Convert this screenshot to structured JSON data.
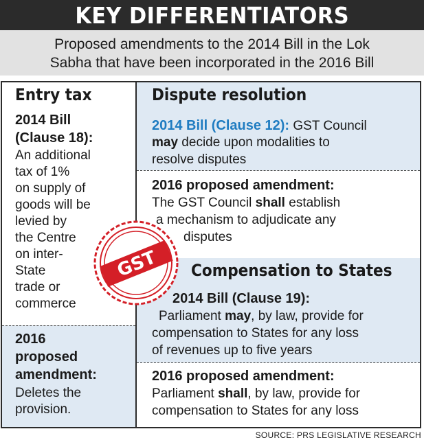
{
  "header": {
    "title": "KEY DIFFERENTIATORS"
  },
  "subtitle": {
    "line1": "Proposed amendments to the 2014 Bill in the Lok",
    "line2": "Sabha that have been incorporated in the 2016 Bill"
  },
  "entry_tax": {
    "heading": "Entry tax",
    "bill_line1": "2014 Bill",
    "bill_line2": "(Clause 18):",
    "body_lines": [
      "An additional",
      "tax of 1%",
      "on supply of",
      "goods will be",
      "levied by",
      "the Centre",
      "on inter-",
      "State",
      "trade or",
      "commerce"
    ],
    "amend_lines": [
      "2016",
      "proposed",
      "amendment:"
    ],
    "amend_body_lines": [
      "Deletes the",
      "provision."
    ]
  },
  "dispute": {
    "heading": "Dispute resolution",
    "bill_label": "2014 Bill (Clause 12):",
    "bill_text1": " GST Council",
    "bill_bold": "may",
    "bill_text2": " decide upon modalities to",
    "bill_text3": "resolve disputes",
    "amend_label": "2016 proposed amendment:",
    "amend_text1": "The GST Council ",
    "amend_bold": "shall",
    "amend_text2": " establish",
    "amend_text3": "a mechanism to adjudicate any",
    "amend_text4": "disputes"
  },
  "compensation": {
    "heading": "Compensation to States",
    "bill_label": "2014 Bill (Clause 19):",
    "bill_text1": "Parliament ",
    "bill_bold": "may",
    "bill_text2": ", by law, provide for",
    "bill_text3": "compensation to States for any loss",
    "bill_text4": "of revenues up to five years",
    "amend_label": "2016 proposed amendment:",
    "amend_text1": "Parliament ",
    "amend_bold": "shall",
    "amend_text2": ", by law, provide for",
    "amend_text3": "compensation to States for any loss"
  },
  "stamp": {
    "text": "GST"
  },
  "source": "SOURCE: PRS LEGISLATIVE RESEARCH",
  "colors": {
    "header_bg": "#2b2b2b",
    "subtitle_bg": "#e2e2e2",
    "box_blue": "#dfe9f3",
    "label_blue": "#1f7cc1",
    "label_red": "#d41f27"
  }
}
